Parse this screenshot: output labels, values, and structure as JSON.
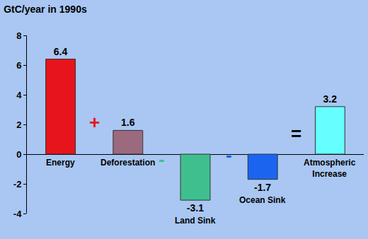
{
  "chart_data": {
    "type": "bar",
    "title": "GtC/year in 1990s",
    "categories": [
      "Energy",
      "Deforestation",
      "Land Sink",
      "Ocean Sink",
      "Atmospheric Increase"
    ],
    "values": [
      6.4,
      1.6,
      -3.1,
      -1.7,
      3.2
    ],
    "colors": [
      "#e8141b",
      "#9c6a7e",
      "#3fbf8e",
      "#1a64f0",
      "#66ffff"
    ],
    "ylim": [
      -4,
      8
    ],
    "yticks": [
      -4,
      -2,
      0,
      2,
      4,
      6,
      8
    ],
    "grid": false,
    "data_labels": true,
    "tick_labels": "y",
    "annotations": [
      "+",
      "-",
      "-",
      "="
    ]
  }
}
